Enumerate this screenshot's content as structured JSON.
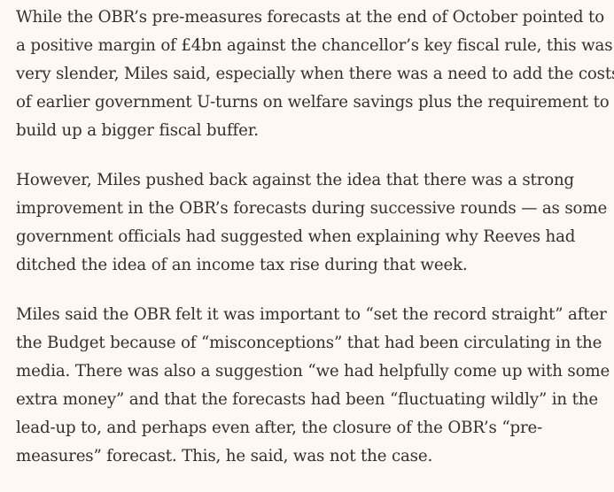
{
  "colors": {
    "background": "#FFF7F1",
    "text": "#33302E"
  },
  "article": {
    "paragraphs": [
      {
        "lines": [
          "While the OBR’s pre-measures forecasts at the end of October pointed to",
          "a positive margin of £4bn against the chancellor’s key fiscal rule, this was",
          "very slender, Miles said, especially when there was a need to add the costs",
          "of earlier government U-turns on welfare savings plus the requirement to",
          "build up a bigger fiscal buffer."
        ]
      },
      {
        "lines": [
          "However, Miles pushed back against the idea that there was a strong",
          "improvement in the OBR’s forecasts during successive rounds — as some",
          "government officials had suggested when explaining why Reeves had",
          "ditched the idea of an income tax rise during that week."
        ]
      },
      {
        "lines": [
          "Miles said the OBR felt it was important to “set the record straight” after",
          "the Budget because of “misconceptions” that had been circulating in the",
          "media. There was also a suggestion “we had helpfully come up with some",
          "extra money” and that the forecasts had been “fluctuating wildly” in the",
          "lead-up to, and perhaps even after, the closure of the OBR’s “pre-",
          "measures” forecast. This, he said, was not the case."
        ]
      }
    ]
  }
}
